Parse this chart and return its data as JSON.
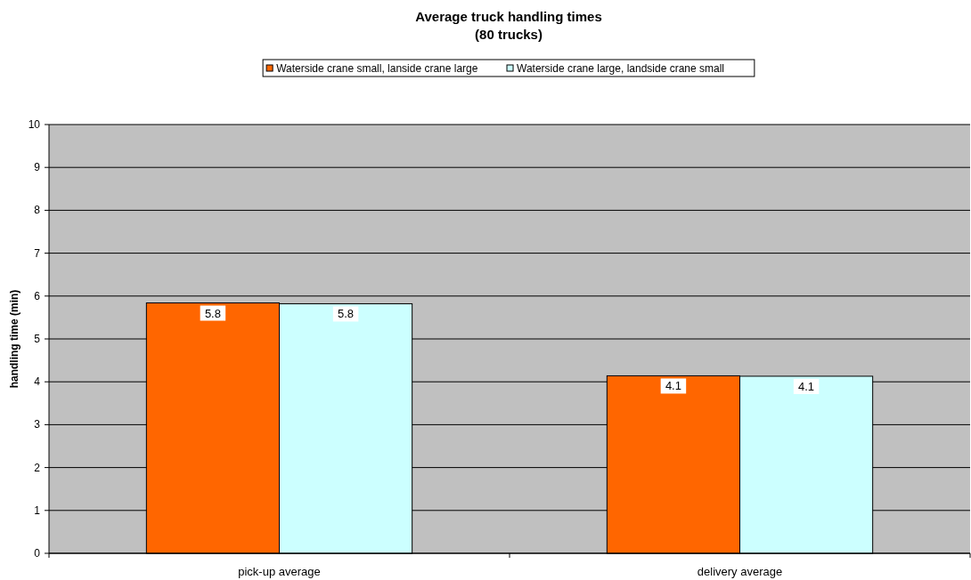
{
  "chart_data": {
    "type": "bar",
    "title": "Average truck handling times\n(80 trucks)",
    "ylabel": "handling time (min)",
    "categories": [
      "pick-up average",
      "delivery average"
    ],
    "series": [
      {
        "name": "Waterside crane small, lanside crane large",
        "color": "#ff6600",
        "values": [
          5.84,
          4.14
        ],
        "value_labels": [
          "5.8",
          "4.1"
        ]
      },
      {
        "name": "Waterside crane large, landside crane small",
        "color": "#ccffff",
        "values": [
          5.82,
          4.13
        ],
        "value_labels": [
          "5.8",
          "4.1"
        ]
      }
    ],
    "ylim": [
      0,
      10
    ],
    "yticks": [
      0,
      1,
      2,
      3,
      4,
      5,
      6,
      7,
      8,
      9,
      10
    ],
    "grid": "y",
    "legend": "top"
  }
}
